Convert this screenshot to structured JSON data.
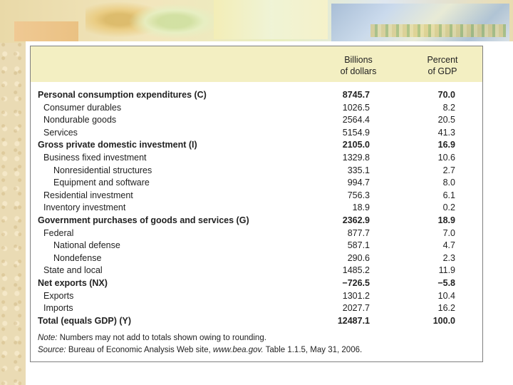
{
  "table": {
    "headers": {
      "col1_line1": "Billions",
      "col1_line2": "of dollars",
      "col2_line1": "Percent",
      "col2_line2": "of GDP"
    },
    "rows": [
      {
        "label": "Personal consumption expenditures (C)",
        "billions": "8745.7",
        "percent": "70.0"
      },
      {
        "label": "Consumer durables",
        "billions": "1026.5",
        "percent": "8.2"
      },
      {
        "label": "Nondurable goods",
        "billions": "2564.4",
        "percent": "20.5"
      },
      {
        "label": "Services",
        "billions": "5154.9",
        "percent": "41.3"
      },
      {
        "label": "Gross private domestic investment (I)",
        "billions": "2105.0",
        "percent": "16.9"
      },
      {
        "label": "Business fixed investment",
        "billions": "1329.8",
        "percent": "10.6"
      },
      {
        "label": "Nonresidential structures",
        "billions": "335.1",
        "percent": "2.7"
      },
      {
        "label": "Equipment and software",
        "billions": "994.7",
        "percent": "8.0"
      },
      {
        "label": "Residential investment",
        "billions": "756.3",
        "percent": "6.1"
      },
      {
        "label": "Inventory investment",
        "billions": "18.9",
        "percent": "0.2"
      },
      {
        "label": "Government purchases of goods and services (G)",
        "billions": "2362.9",
        "percent": "18.9"
      },
      {
        "label": "Federal",
        "billions": "877.7",
        "percent": "7.0"
      },
      {
        "label": "National defense",
        "billions": "587.1",
        "percent": "4.7"
      },
      {
        "label": "Nondefense",
        "billions": "290.6",
        "percent": "2.3"
      },
      {
        "label": "State and local",
        "billions": "1485.2",
        "percent": "11.9"
      },
      {
        "label": "Net exports (NX)",
        "billions": "−726.5",
        "percent": "−5.8"
      },
      {
        "label": "Exports",
        "billions": "1301.2",
        "percent": "10.4"
      },
      {
        "label": "Imports",
        "billions": "2027.7",
        "percent": "16.2"
      },
      {
        "label": "Total (equals GDP) (Y)",
        "billions": "12487.1",
        "percent": "100.0"
      }
    ],
    "note_label": "Note:",
    "note_text": "Numbers may not add to totals shown owing to rounding.",
    "source_label": "Source:",
    "source_text_1": "Bureau of Economic Analysis Web site,",
    "source_url": "www.bea.gov.",
    "source_text_2": "Table 1.1.5, May 31, 2006."
  }
}
